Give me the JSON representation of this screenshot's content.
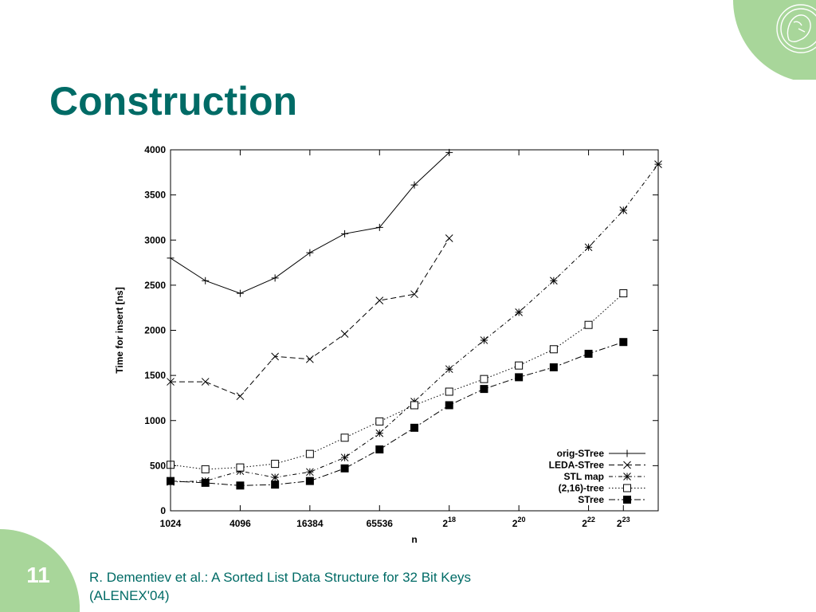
{
  "slide": {
    "title": "Construction",
    "page_number": "11",
    "citation_line1": "R. Dementiev et al.: A Sorted List Data Structure for 32 Bit Keys",
    "citation_line2": "(ALENEX'04)"
  },
  "colors": {
    "title": "#006b66",
    "accent_green": "#a8d69a",
    "logo_line": "#ffffff",
    "plot_ink": "#000000"
  },
  "logo": {
    "icon": "emblem-icon"
  },
  "chart_data": {
    "type": "line",
    "xlabel": "n",
    "ylabel": "Time for insert [ns]",
    "x_scale": "log2",
    "xlim": [
      1024,
      16777216
    ],
    "ylim": [
      0,
      4000
    ],
    "yticks": [
      0,
      500,
      1000,
      1500,
      2000,
      2500,
      3000,
      3500,
      4000
    ],
    "xticks": [
      {
        "value": 1024,
        "label": "1024"
      },
      {
        "value": 4096,
        "label": "4096"
      },
      {
        "value": 16384,
        "label": "16384"
      },
      {
        "value": 65536,
        "label": "65536"
      },
      {
        "value": 262144,
        "base": "2",
        "exp": "18"
      },
      {
        "value": 1048576,
        "base": "2",
        "exp": "20"
      },
      {
        "value": 4194304,
        "base": "2",
        "exp": "22"
      },
      {
        "value": 8388608,
        "base": "2",
        "exp": "23"
      }
    ],
    "grid": false,
    "legend": "bottom-right",
    "series": [
      {
        "name": "orig-STree",
        "marker": "plus",
        "dash": "none",
        "x": [
          1024,
          2048,
          4096,
          8192,
          16384,
          32768,
          65536,
          131072,
          262144
        ],
        "y": [
          2800,
          2550,
          2410,
          2580,
          2860,
          3070,
          3140,
          3610,
          3970
        ]
      },
      {
        "name": "LEDA-STree",
        "marker": "cross",
        "dash": "7,4",
        "x": [
          1024,
          2048,
          4096,
          8192,
          16384,
          32768,
          65536,
          131072,
          262144
        ],
        "y": [
          1430,
          1430,
          1270,
          1710,
          1680,
          1960,
          2330,
          2400,
          3020
        ]
      },
      {
        "name": "STL map",
        "marker": "star",
        "dash": "5,3,1,3",
        "x": [
          1024,
          2048,
          4096,
          8192,
          16384,
          32768,
          65536,
          131072,
          262144,
          524288,
          1048576,
          2097152,
          4194304,
          8388608,
          16777216
        ],
        "y": [
          320,
          330,
          440,
          370,
          430,
          590,
          860,
          1210,
          1570,
          1890,
          2200,
          2550,
          2920,
          3330,
          3840
        ]
      },
      {
        "name": "(2,16)-tree",
        "marker": "open-square",
        "dash": "1.5,2.5",
        "x": [
          1024,
          2048,
          4096,
          8192,
          16384,
          32768,
          65536,
          131072,
          262144,
          524288,
          1048576,
          2097152,
          4194304,
          8388608
        ],
        "y": [
          510,
          460,
          480,
          520,
          630,
          810,
          990,
          1170,
          1320,
          1460,
          1610,
          1790,
          2060,
          2410
        ]
      },
      {
        "name": "STree",
        "marker": "filled-square",
        "dash": "8,3,2,3",
        "x": [
          1024,
          2048,
          4096,
          8192,
          16384,
          32768,
          65536,
          131072,
          262144,
          524288,
          1048576,
          2097152,
          4194304,
          8388608
        ],
        "y": [
          330,
          310,
          280,
          290,
          330,
          470,
          680,
          920,
          1170,
          1350,
          1480,
          1590,
          1740,
          1870
        ]
      }
    ]
  }
}
